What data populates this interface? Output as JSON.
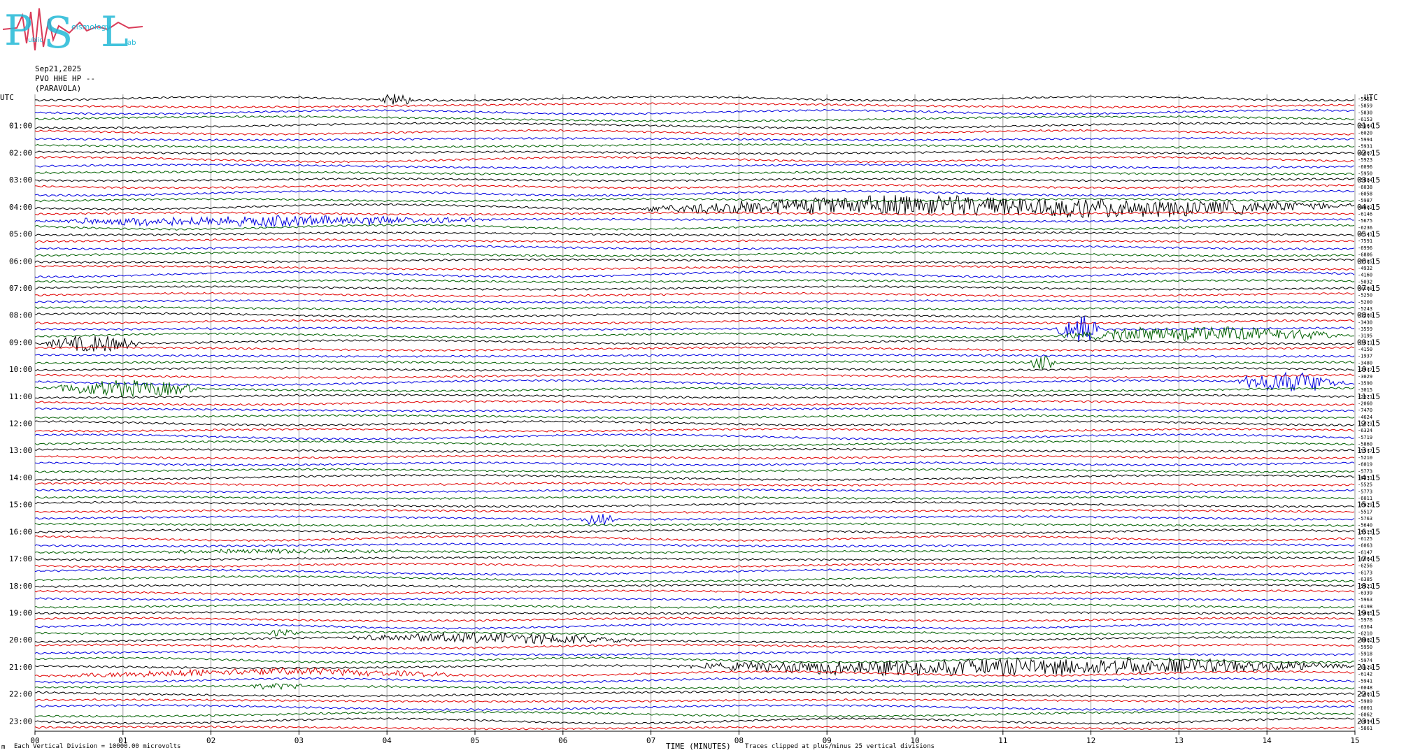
{
  "logo": {
    "letters": [
      "P",
      "S",
      "L"
    ],
    "small_words": [
      "ublic",
      "eismology",
      "ab"
    ],
    "colors": {
      "trace": "#d93b58",
      "letters": "#22b8d6"
    }
  },
  "header": {
    "date": "Sep21,2025",
    "station": "PVO HHE HP --",
    "location": "(PARAVOLA)"
  },
  "chart_data": {
    "type": "line",
    "title": "",
    "xlabel": "TIME (MINUTES)",
    "x_ticks": [
      "00",
      "01",
      "02",
      "03",
      "04",
      "05",
      "06",
      "07",
      "08",
      "09",
      "10",
      "11",
      "12",
      "13",
      "14",
      "15"
    ],
    "xlim": [
      0,
      15
    ],
    "left_axis_title": "UTC",
    "right_axis_title": "UTC",
    "left_hour_labels": [
      "01:00",
      "02:00",
      "03:00",
      "04:00",
      "05:00",
      "06:00",
      "07:00",
      "08:00",
      "09:00",
      "10:00",
      "11:00",
      "12:00",
      "13:00",
      "14:00",
      "15:00",
      "16:00",
      "17:00",
      "18:00",
      "19:00",
      "20:00",
      "21:00",
      "22:00",
      "23:00"
    ],
    "right_hour_labels": [
      "01:15",
      "02:15",
      "03:15",
      "04:15",
      "05:15",
      "06:15",
      "07:15",
      "08:15",
      "09:15",
      "10:15",
      "11:15",
      "12:15",
      "13:15",
      "14:15",
      "15:15",
      "16:15",
      "17:15",
      "18:15",
      "19:15",
      "20:15",
      "21:15",
      "22:15",
      "23:15"
    ],
    "trace_colors": [
      "#000000",
      "#e00000",
      "#0000e0",
      "#006000"
    ],
    "trace_offsets": [
      "-5952",
      "-5859",
      "-5830",
      "-6153",
      "-5964",
      "-6020",
      "-5994",
      "-5931",
      "-6007",
      "-5923",
      "-6096",
      "-5950",
      "-5884",
      "-6038",
      "-6058",
      "-5987",
      "-6002",
      "-6146",
      "-5675",
      "-6236",
      "-6143",
      "-7591",
      "-6996",
      "-6806",
      "-5785",
      "-4932",
      "-4160",
      "-5032",
      "-4160",
      "-5250",
      "-5200",
      "-5243",
      "-3260",
      "-3430",
      "-3559",
      "-3195",
      "-3511",
      "-4150",
      "-1937",
      "-3480",
      "-2937",
      "-3029",
      "-3590",
      "-3015",
      "-2021",
      "-2060",
      "-7470",
      "-4624",
      "-5073",
      "-6324",
      "-5719",
      "-5860",
      "-5537",
      "-5210",
      "-6019",
      "-5773",
      "-6231",
      "-5525",
      "-5773",
      "-6011",
      "-6029",
      "-5517",
      "-5763",
      "-5640",
      "-5515",
      "-6125",
      "-6063",
      "-6147",
      "-6064",
      "-6256",
      "-6173",
      "-6385",
      "-5921",
      "-6339",
      "-5963",
      "-6198",
      "-5985",
      "-5978",
      "-6364",
      "-6210",
      "-6002",
      "-5950",
      "-5918",
      "-5974",
      "-6029",
      "-6142",
      "-5941",
      "-6048",
      "-5901",
      "-5989",
      "-6001",
      "-6062",
      "-6054",
      "-5861"
    ],
    "footer_left": "Each Vertical Division = 10000.00 microvolts",
    "footer_right": "Traces clipped at plus/minus 25 vertical divisions",
    "corner_mark": "m",
    "events": [
      {
        "row": 0,
        "minute_start": 3.9,
        "minute_end": 4.3,
        "amplitude": 8
      },
      {
        "row": 16,
        "minute_start": 6.8,
        "minute_end": 15,
        "amplitude": 14
      },
      {
        "row": 18,
        "minute_start": 0,
        "minute_end": 5.2,
        "amplitude": 7
      },
      {
        "row": 36,
        "minute_start": 0.1,
        "minute_end": 1.2,
        "amplitude": 12
      },
      {
        "row": 35,
        "minute_start": 11.6,
        "minute_end": 14.9,
        "amplitude": 10
      },
      {
        "row": 34,
        "minute_start": 11.6,
        "minute_end": 12.1,
        "amplitude": 20
      },
      {
        "row": 39,
        "minute_start": 11.3,
        "minute_end": 11.6,
        "amplitude": 9
      },
      {
        "row": 43,
        "minute_start": 0.2,
        "minute_end": 1.9,
        "amplitude": 12
      },
      {
        "row": 42,
        "minute_start": 13.6,
        "minute_end": 14.9,
        "amplitude": 14
      },
      {
        "row": 62,
        "minute_start": 6.2,
        "minute_end": 6.6,
        "amplitude": 9
      },
      {
        "row": 67,
        "minute_start": 1.3,
        "minute_end": 4.3,
        "amplitude": 3
      },
      {
        "row": 79,
        "minute_start": 2.6,
        "minute_end": 3.0,
        "amplitude": 6
      },
      {
        "row": 80,
        "minute_start": 3.5,
        "minute_end": 7.0,
        "amplitude": 7
      },
      {
        "row": 84,
        "minute_start": 7.2,
        "minute_end": 15,
        "amplitude": 12
      },
      {
        "row": 85,
        "minute_start": 0.1,
        "minute_end": 5.0,
        "amplitude": 5
      },
      {
        "row": 87,
        "minute_start": 2.3,
        "minute_end": 3.1,
        "amplitude": 4
      }
    ]
  }
}
